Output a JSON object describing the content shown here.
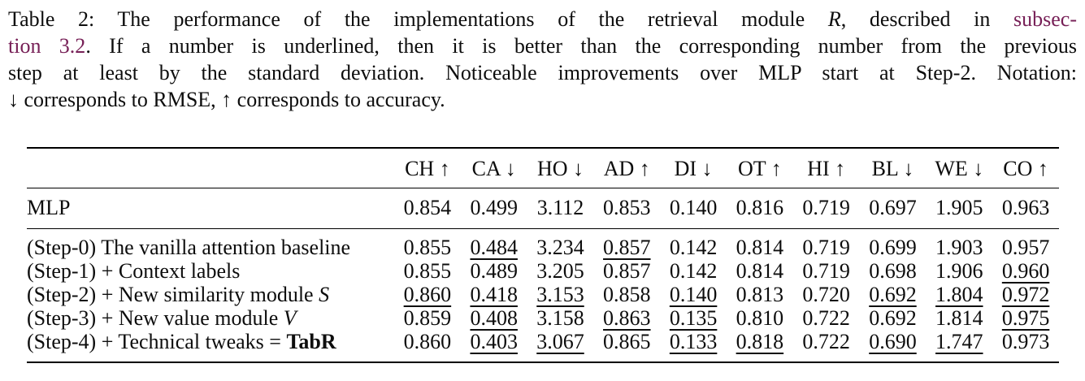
{
  "caption": {
    "lines": [
      {
        "justify": true,
        "parts": [
          {
            "t": "Table 2: The performance of the implementations of the retrieval module ",
            "style": "text"
          },
          {
            "t": "R",
            "style": "math"
          },
          {
            "t": ", described in ",
            "style": "text"
          },
          {
            "t": "subsec-",
            "style": "link"
          }
        ]
      },
      {
        "justify": true,
        "parts": [
          {
            "t": "tion 3.2",
            "style": "link"
          },
          {
            "t": ". If a number is underlined, then it is better than the corresponding number from the previous",
            "style": "text"
          }
        ]
      },
      {
        "justify": true,
        "parts": [
          {
            "t": "step at least by the standard deviation. Noticeable improvements over MLP start at Step-2. Notation:",
            "style": "text"
          }
        ]
      },
      {
        "justify": false,
        "parts": [
          {
            "t": "↓ corresponds to RMSE, ↑ corresponds to accuracy.",
            "style": "text"
          }
        ]
      }
    ]
  },
  "colors": {
    "link": "#772057",
    "text": "#0d0d0d",
    "rule": "#000000"
  },
  "chart_data": {
    "type": "table",
    "title": "Table 2: Performance of implementations of the retrieval module R",
    "columns": [
      "CH ↑",
      "CA ↓",
      "HO ↓",
      "AD ↑",
      "DI ↓",
      "OT ↑",
      "HI ↑",
      "BL ↓",
      "WE ↓",
      "CO ↑"
    ],
    "rows": [
      {
        "group": "mlp",
        "label": [
          {
            "t": "MLP",
            "style": "text"
          }
        ],
        "values": [
          {
            "v": "0.854"
          },
          {
            "v": "0.499"
          },
          {
            "v": "3.112"
          },
          {
            "v": "0.853"
          },
          {
            "v": "0.140"
          },
          {
            "v": "0.816"
          },
          {
            "v": "0.719"
          },
          {
            "v": "0.697"
          },
          {
            "v": "1.905"
          },
          {
            "v": "0.963"
          }
        ]
      },
      {
        "group": "step",
        "label": [
          {
            "t": "(Step-0) The vanilla attention baseline",
            "style": "text"
          }
        ],
        "values": [
          {
            "v": "0.855"
          },
          {
            "v": "0.484",
            "u": true
          },
          {
            "v": "3.234"
          },
          {
            "v": "0.857",
            "u": true
          },
          {
            "v": "0.142"
          },
          {
            "v": "0.814"
          },
          {
            "v": "0.719"
          },
          {
            "v": "0.699"
          },
          {
            "v": "1.903"
          },
          {
            "v": "0.957"
          }
        ]
      },
      {
        "group": "step",
        "label": [
          {
            "t": "(Step-1) + Context labels",
            "style": "text"
          }
        ],
        "values": [
          {
            "v": "0.855"
          },
          {
            "v": "0.489"
          },
          {
            "v": "3.205"
          },
          {
            "v": "0.857"
          },
          {
            "v": "0.142"
          },
          {
            "v": "0.814"
          },
          {
            "v": "0.719"
          },
          {
            "v": "0.698"
          },
          {
            "v": "1.906"
          },
          {
            "v": "0.960",
            "u": true
          }
        ]
      },
      {
        "group": "step",
        "label": [
          {
            "t": "(Step-2) + New similarity module ",
            "style": "text"
          },
          {
            "t": "S",
            "style": "math"
          }
        ],
        "values": [
          {
            "v": "0.860",
            "u": true
          },
          {
            "v": "0.418",
            "u": true
          },
          {
            "v": "3.153",
            "u": true
          },
          {
            "v": "0.858"
          },
          {
            "v": "0.140",
            "u": true
          },
          {
            "v": "0.813"
          },
          {
            "v": "0.720"
          },
          {
            "v": "0.692",
            "u": true
          },
          {
            "v": "1.804",
            "u": true
          },
          {
            "v": "0.972",
            "u": true
          }
        ]
      },
      {
        "group": "step",
        "label": [
          {
            "t": "(Step-3) + New value module ",
            "style": "text"
          },
          {
            "t": "V",
            "style": "math"
          }
        ],
        "values": [
          {
            "v": "0.859"
          },
          {
            "v": "0.408",
            "u": true
          },
          {
            "v": "3.158"
          },
          {
            "v": "0.863",
            "u": true
          },
          {
            "v": "0.135",
            "u": true
          },
          {
            "v": "0.810"
          },
          {
            "v": "0.722"
          },
          {
            "v": "0.692"
          },
          {
            "v": "1.814"
          },
          {
            "v": "0.975",
            "u": true
          }
        ]
      },
      {
        "group": "step",
        "label": [
          {
            "t": "(Step-4) + Technical tweaks = ",
            "style": "text"
          },
          {
            "t": "TabR",
            "style": "bold"
          }
        ],
        "values": [
          {
            "v": "0.860"
          },
          {
            "v": "0.403",
            "u": true
          },
          {
            "v": "3.067",
            "u": true
          },
          {
            "v": "0.865"
          },
          {
            "v": "0.133",
            "u": true
          },
          {
            "v": "0.818",
            "u": true
          },
          {
            "v": "0.722"
          },
          {
            "v": "0.690",
            "u": true
          },
          {
            "v": "1.747",
            "u": true
          },
          {
            "v": "0.973"
          }
        ]
      }
    ]
  }
}
